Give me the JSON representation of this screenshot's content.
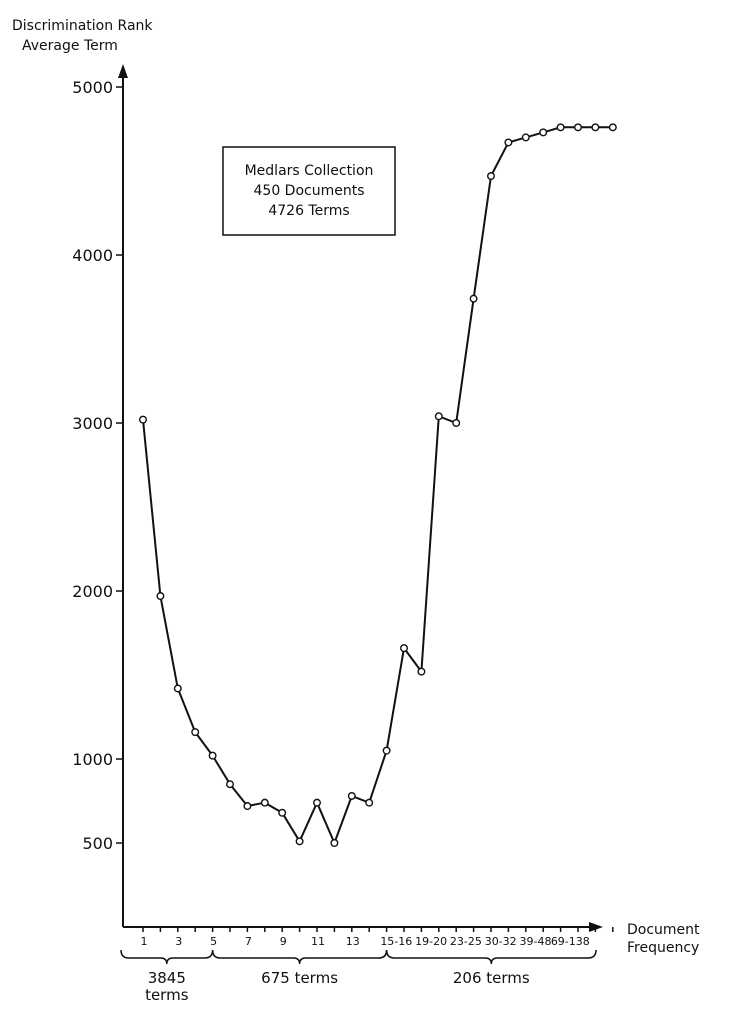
{
  "chart_data": {
    "type": "line",
    "ylabel_lines": [
      "Discrimination  Rank",
      "Average  Term"
    ],
    "xlabel_lines": [
      "Document",
      "Frequency"
    ],
    "yticks": [
      500,
      1000,
      2000,
      3000,
      4000,
      5000
    ],
    "ytick_labels": [
      "500",
      "1000",
      "2000",
      "3000",
      "4000",
      "5000"
    ],
    "x_tick_labels": [
      "1",
      "3",
      "5",
      "7",
      "9",
      "11",
      "13",
      "15-16",
      "19-20",
      "23-25",
      "30-32",
      "39-48",
      "69-138"
    ],
    "ylim": [
      0,
      5200
    ],
    "grid": false,
    "annotation_lines": [
      "Medlars Collection",
      "450 Documents",
      "4726 Terms"
    ],
    "groups": [
      {
        "lines": [
          "3845",
          "terms"
        ],
        "range": [
          1,
          5
        ]
      },
      {
        "lines": [
          "675  terms"
        ],
        "range": [
          5,
          15
        ]
      },
      {
        "lines": [
          "206  terms"
        ],
        "range": [
          15,
          35
        ]
      }
    ],
    "series": [
      {
        "x": [
          1,
          2,
          3,
          4,
          5,
          6,
          7,
          8,
          9,
          10,
          11,
          12,
          13,
          14,
          15,
          16,
          17,
          18,
          19,
          20,
          21,
          22,
          23,
          24,
          25,
          26,
          27,
          28
        ],
        "values": [
          3020,
          1970,
          1420,
          1160,
          1020,
          850,
          720,
          740,
          680,
          510,
          740,
          500,
          780,
          740,
          1050,
          1660,
          1520,
          3040,
          3000,
          3740,
          4470,
          4670,
          4700,
          4730,
          4760,
          4760,
          4760,
          4760
        ]
      }
    ]
  }
}
